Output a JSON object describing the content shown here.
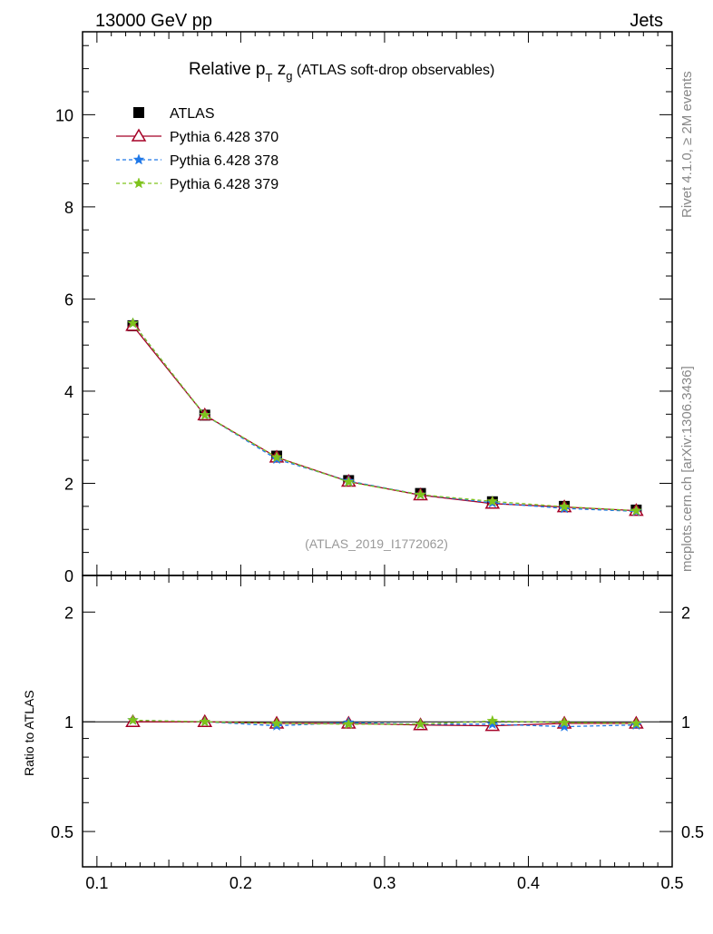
{
  "header": {
    "left": "13000 GeV pp",
    "right": "Jets"
  },
  "side_labels": {
    "rivet": "Rivet 4.1.0, ≥ 2M events",
    "mcplots": "mcplots.cern.ch [arXiv:1306.3436]"
  },
  "chart_data": {
    "type": "line",
    "title_main": "Relative p",
    "title_sub_T": "T",
    "title_z": " z",
    "title_sub_g": "g",
    "title_rest": " (ATLAS soft-drop observables)",
    "analysis_label": "(ATLAS_2019_I1772062)",
    "x": [
      0.125,
      0.175,
      0.225,
      0.275,
      0.325,
      0.375,
      0.425,
      0.475
    ],
    "xlim": [
      0.09,
      0.5
    ],
    "ylim": [
      0,
      11.8
    ],
    "ratio_ylim": [
      0.4,
      2.52
    ],
    "ratio_ylabel": "Ratio to ATLAS",
    "x_ticks": [
      "0.1",
      "0.2",
      "0.3",
      "0.4",
      "0.5"
    ],
    "y_ticks": [
      "0",
      "2",
      "4",
      "6",
      "8",
      "10"
    ],
    "ratio_ticks": [
      "0.5",
      "1",
      "2"
    ],
    "data": {
      "name": "ATLAS",
      "color": "#000000",
      "values": [
        5.42,
        3.48,
        2.59,
        2.06,
        1.78,
        1.6,
        1.5,
        1.42
      ]
    },
    "series": [
      {
        "name": "Pythia 6.428 370",
        "color": "#a50026",
        "marker": "triangle",
        "dash": "",
        "ratio": [
          1.0,
          1.0,
          0.99,
          0.99,
          0.98,
          0.975,
          0.99,
          0.99
        ]
      },
      {
        "name": "Pythia 6.428 378",
        "color": "#1f78e8",
        "marker": "star",
        "dash": "4,3",
        "ratio": [
          1.01,
          1.0,
          0.975,
          0.995,
          0.985,
          0.985,
          0.97,
          0.98
        ]
      },
      {
        "name": "Pythia 6.428 379",
        "color": "#7fc31c",
        "marker": "star",
        "dash": "4,3",
        "ratio": [
          1.01,
          1.0,
          0.99,
          0.985,
          0.985,
          1.005,
          0.995,
          0.99
        ]
      }
    ]
  }
}
